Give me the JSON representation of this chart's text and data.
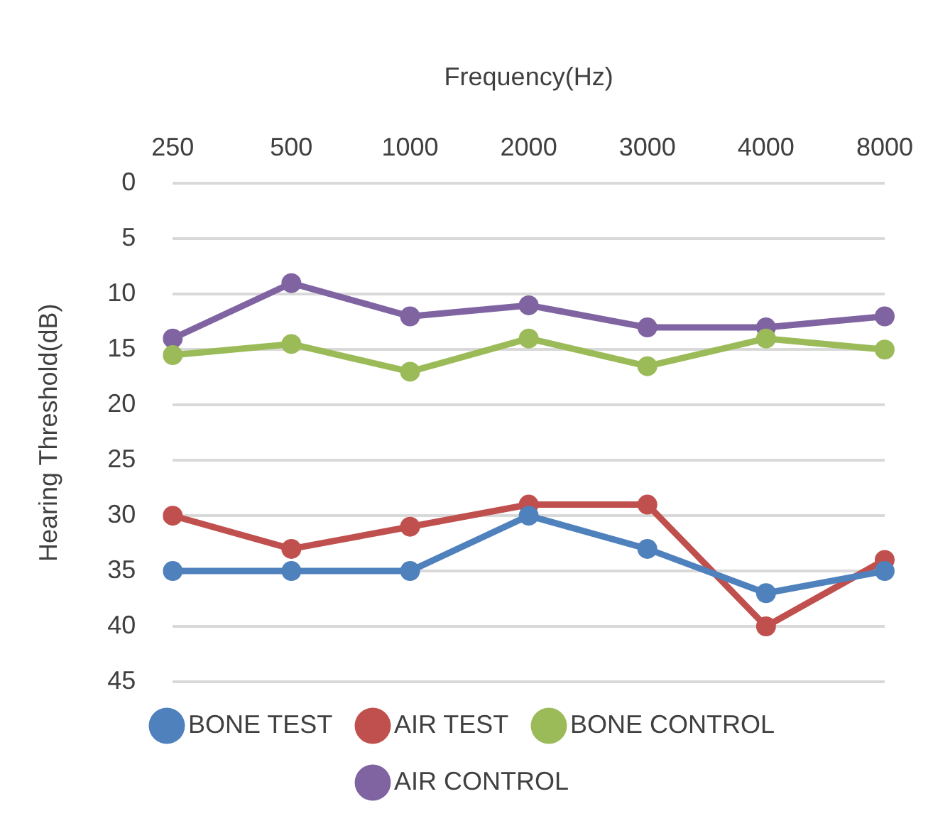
{
  "chart_data": {
    "type": "line",
    "xlabel": "Frequency(Hz)",
    "ylabel": "Hearing Threshold(dB)",
    "categories": [
      "250",
      "500",
      "1000",
      "2000",
      "3000",
      "4000",
      "8000"
    ],
    "series": [
      {
        "name": "BONE TEST",
        "color": "#4f81bd",
        "values": [
          35,
          35,
          35,
          30,
          33,
          37,
          35
        ]
      },
      {
        "name": "AIR TEST",
        "color": "#c0504d",
        "values": [
          30,
          33,
          31,
          29,
          29,
          40,
          34
        ]
      },
      {
        "name": "BONE CONTROL",
        "color": "#9bbb59",
        "values": [
          15.5,
          14.5,
          17,
          14,
          16.5,
          14,
          15
        ]
      },
      {
        "name": "AIR CONTROL",
        "color": "#8064a2",
        "values": [
          14,
          9,
          12,
          11,
          13,
          13,
          12
        ]
      }
    ],
    "ylim": [
      45,
      0
    ],
    "yticks": [
      0,
      5,
      10,
      15,
      20,
      25,
      30,
      35,
      40,
      45
    ],
    "grid": "y",
    "legend": "bottom",
    "marker": "circle",
    "line_style": "solid"
  }
}
